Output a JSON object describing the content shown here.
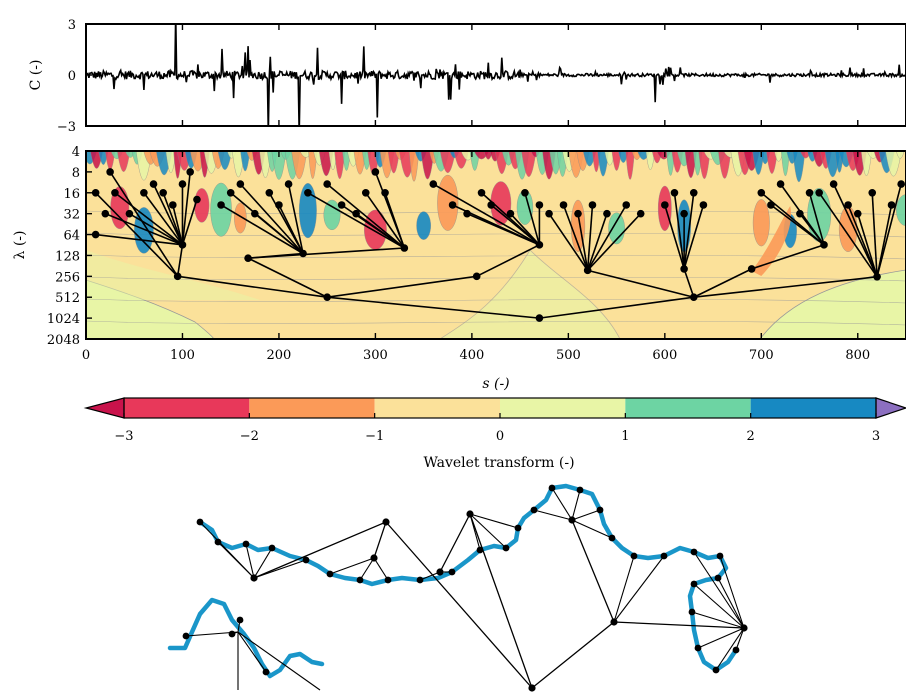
{
  "chart_data": [
    {
      "type": "line",
      "ylabel": "C (-)",
      "yticks": [
        -3,
        0,
        3
      ],
      "ylim": [
        -3,
        3
      ],
      "xlim": [
        0,
        850
      ],
      "series": [
        {
          "values_seed": 7,
          "n": 850
        }
      ]
    },
    {
      "type": "heatmap",
      "title": "",
      "xlabel": "s (-)",
      "ylabel": "λ (-)",
      "xticks": [
        0,
        100,
        200,
        300,
        400,
        500,
        600,
        700,
        800
      ],
      "yticks": [
        4,
        8,
        16,
        32,
        64,
        128,
        256,
        512,
        1024,
        2048
      ],
      "xlim": [
        0,
        850
      ],
      "ylim": [
        4,
        2048
      ],
      "log_y": true,
      "tree_nodes": [
        {
          "id": "root",
          "s": 470,
          "lambda": 1024
        },
        {
          "id": "n1",
          "s": 250,
          "lambda": 512
        },
        {
          "id": "n2",
          "s": 630,
          "lambda": 512
        },
        {
          "id": "n3",
          "s": 95,
          "lambda": 256
        },
        {
          "id": "n4",
          "s": 168,
          "lambda": 140
        },
        {
          "id": "n5",
          "s": 405,
          "lambda": 256
        },
        {
          "id": "n6",
          "s": 520,
          "lambda": 210
        },
        {
          "id": "n7",
          "s": 620,
          "lambda": 200
        },
        {
          "id": "n8",
          "s": 690,
          "lambda": 200
        },
        {
          "id": "n9",
          "s": 820,
          "lambda": 260
        },
        {
          "id": "n10",
          "s": 100,
          "lambda": 90
        },
        {
          "id": "n11",
          "s": 225,
          "lambda": 120
        },
        {
          "id": "n12",
          "s": 330,
          "lambda": 100
        },
        {
          "id": "n13",
          "s": 470,
          "lambda": 90
        },
        {
          "id": "n14",
          "s": 765,
          "lambda": 90
        }
      ]
    },
    {
      "type": "heatmap",
      "colorbar": true,
      "label": "Wavelet transform (-)",
      "ticks": [
        -3,
        -2,
        -1,
        0,
        1,
        2,
        3
      ],
      "bins": [
        {
          "from": -3,
          "to": -2,
          "color": "#e8385a"
        },
        {
          "from": -2,
          "to": -1,
          "color": "#fb9a58"
        },
        {
          "from": -1,
          "to": 0,
          "color": "#fbe19a"
        },
        {
          "from": 0,
          "to": 1,
          "color": "#e8f5a6"
        },
        {
          "from": 1,
          "to": 2,
          "color": "#6dd4a3"
        },
        {
          "from": 2,
          "to": 3,
          "color": "#1789c2"
        }
      ],
      "under_color": "#c9134b",
      "over_color": "#8c6fc0"
    }
  ],
  "colors": {
    "curve": "#1a96c9",
    "node": "#000000",
    "grid_lines": "#9a9a9a"
  },
  "labels": {
    "c_axis": "C (-)",
    "lambda_axis": "λ (-)",
    "s_axis": "s (-)",
    "colorbar": "Wavelet transform (-)"
  }
}
